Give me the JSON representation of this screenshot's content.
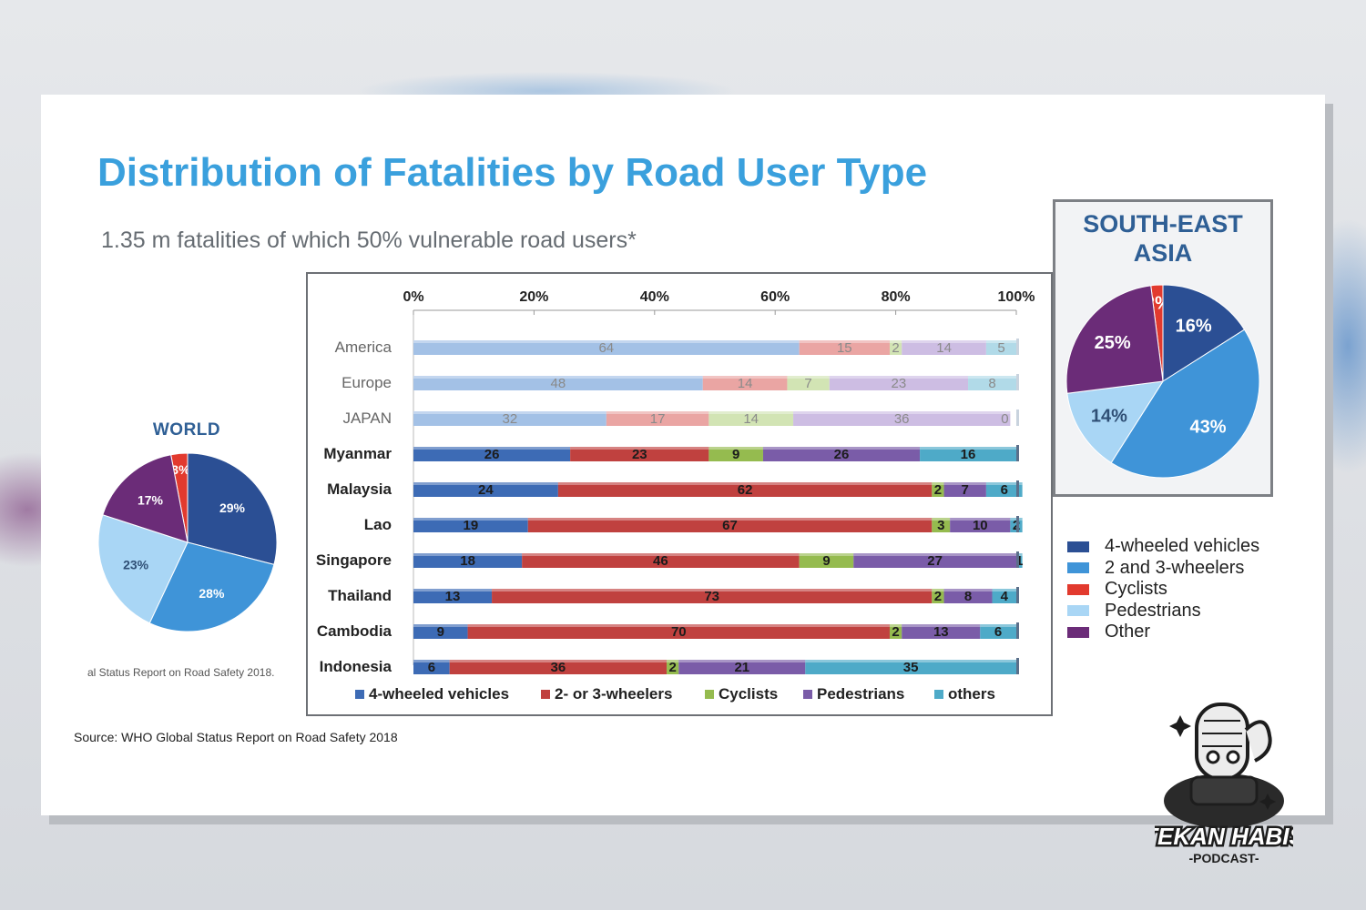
{
  "title": "Distribution of Fatalities by Road User Type",
  "subtitle": "1.35 m fatalities of which 50% vulnerable road users*",
  "source": "Source: WHO Global Status Report on Road Safety 2018",
  "world": {
    "label": "WORLD",
    "caption": "al Status Report on Road Safety 2018."
  },
  "sea": {
    "title_line1": "SOUTH-EAST",
    "title_line2": "ASIA"
  },
  "right_legend": [
    {
      "label": "4-wheeled vehicles",
      "color": "#2b4f94"
    },
    {
      "label": "2 and 3-wheelers",
      "color": "#3f94d8"
    },
    {
      "label": "Cyclists",
      "color": "#e23a2e"
    },
    {
      "label": "Pedestrians",
      "color": "#a9d6f5"
    },
    {
      "label": "Other",
      "color": "#6b2c78"
    }
  ],
  "logo": {
    "line1": "TEKAN HABIS",
    "line2": "-PODCAST-"
  },
  "chart_data": [
    {
      "type": "pie",
      "label": "WORLD",
      "slices": [
        {
          "category": "4-wheeled vehicles",
          "value": 29,
          "label": "29%",
          "color": "#2b4f94"
        },
        {
          "category": "2 and 3-wheelers",
          "value": 28,
          "label": "28%",
          "color": "#3f94d8"
        },
        {
          "category": "Pedestrians",
          "value": 23,
          "label": "23%",
          "color": "#a9d6f5"
        },
        {
          "category": "Other",
          "value": 17,
          "label": "17%",
          "color": "#6b2c78"
        },
        {
          "category": "Cyclists",
          "value": 3,
          "label": "3%",
          "color": "#e23a2e"
        }
      ]
    },
    {
      "type": "pie",
      "label": "SOUTH-EAST ASIA",
      "slices": [
        {
          "category": "4-wheeled vehicles",
          "value": 16,
          "label": "16%",
          "color": "#2b4f94"
        },
        {
          "category": "2 and 3-wheelers",
          "value": 43,
          "label": "43%",
          "color": "#3f94d8"
        },
        {
          "category": "Pedestrians",
          "value": 14,
          "label": "14%",
          "color": "#a9d6f5"
        },
        {
          "category": "Other",
          "value": 25,
          "label": "25%",
          "color": "#6b2c78"
        },
        {
          "category": "Cyclists",
          "value": 2,
          "label": "2%",
          "color": "#e23a2e"
        }
      ]
    },
    {
      "type": "bar",
      "orientation": "horizontal",
      "stacked": true,
      "xlim": [
        0,
        100
      ],
      "xticks": [
        "0%",
        "20%",
        "40%",
        "60%",
        "80%",
        "100%"
      ],
      "categories": [
        "America",
        "Europe",
        "JAPAN",
        "Myanmar",
        "Malaysia",
        "Lao",
        "Singapore",
        "Thailand",
        "Cambodia",
        "Indonesia"
      ],
      "faded_categories": [
        "America",
        "Europe",
        "JAPAN"
      ],
      "series": [
        {
          "name": "4-wheeled vehicles",
          "color": "#3d6bb5",
          "faded_color": "#a3c1e6",
          "values": [
            64,
            48,
            32,
            26,
            24,
            19,
            18,
            13,
            9,
            6
          ]
        },
        {
          "name": "2- or 3-wheelers",
          "color": "#c0413f",
          "faded_color": "#eaa5a3",
          "values": [
            15,
            14,
            17,
            23,
            62,
            67,
            46,
            73,
            70,
            36
          ]
        },
        {
          "name": "Cyclists",
          "color": "#95bb4f",
          "faded_color": "#d2e4b4",
          "values": [
            2,
            7,
            14,
            9,
            2,
            3,
            9,
            2,
            2,
            2
          ]
        },
        {
          "name": "Pedestrians",
          "color": "#7a5ca8",
          "faded_color": "#cdbde3",
          "values": [
            14,
            23,
            36,
            26,
            7,
            10,
            27,
            8,
            13,
            21
          ]
        },
        {
          "name": "others",
          "color": "#4eaac8",
          "faded_color": "#b1dae8",
          "values": [
            5,
            8,
            0,
            16,
            6,
            2,
            1,
            4,
            6,
            35
          ]
        }
      ]
    }
  ]
}
